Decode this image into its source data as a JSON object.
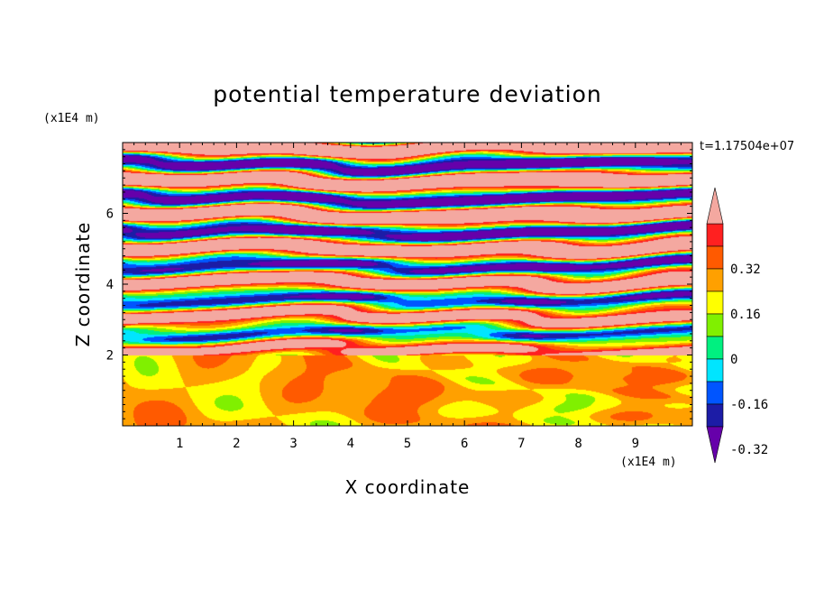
{
  "chart_data": {
    "type": "heatmap",
    "title": "potential temperature deviation",
    "xlabel": "X coordinate",
    "ylabel": "Z coordinate",
    "x_unit": "(x1E4 m)",
    "y_unit": "(x1E4 m)",
    "time_label": "t=1.17504e+07",
    "xlim": [
      0,
      10
    ],
    "ylim": [
      0,
      8
    ],
    "x_ticks": [
      1,
      2,
      3,
      4,
      5,
      6,
      7,
      8,
      9
    ],
    "y_ticks": [
      2,
      4,
      6
    ],
    "colorbar": {
      "levels": [
        -0.48,
        -0.4,
        -0.32,
        -0.24,
        -0.16,
        -0.08,
        0,
        0.08,
        0.16,
        0.24,
        0.32,
        0.4,
        0.48
      ],
      "labels": [
        "0.32",
        "0.16",
        "0",
        "-0.16",
        "-0.32"
      ],
      "colors": [
        "#6600aa",
        "#1c1ca6",
        "#0055ff",
        "#00e5ff",
        "#00f080",
        "#80f000",
        "#ffff00",
        "#ffa000",
        "#ff5a00",
        "#ff2020",
        "#f4a8a0"
      ]
    }
  }
}
